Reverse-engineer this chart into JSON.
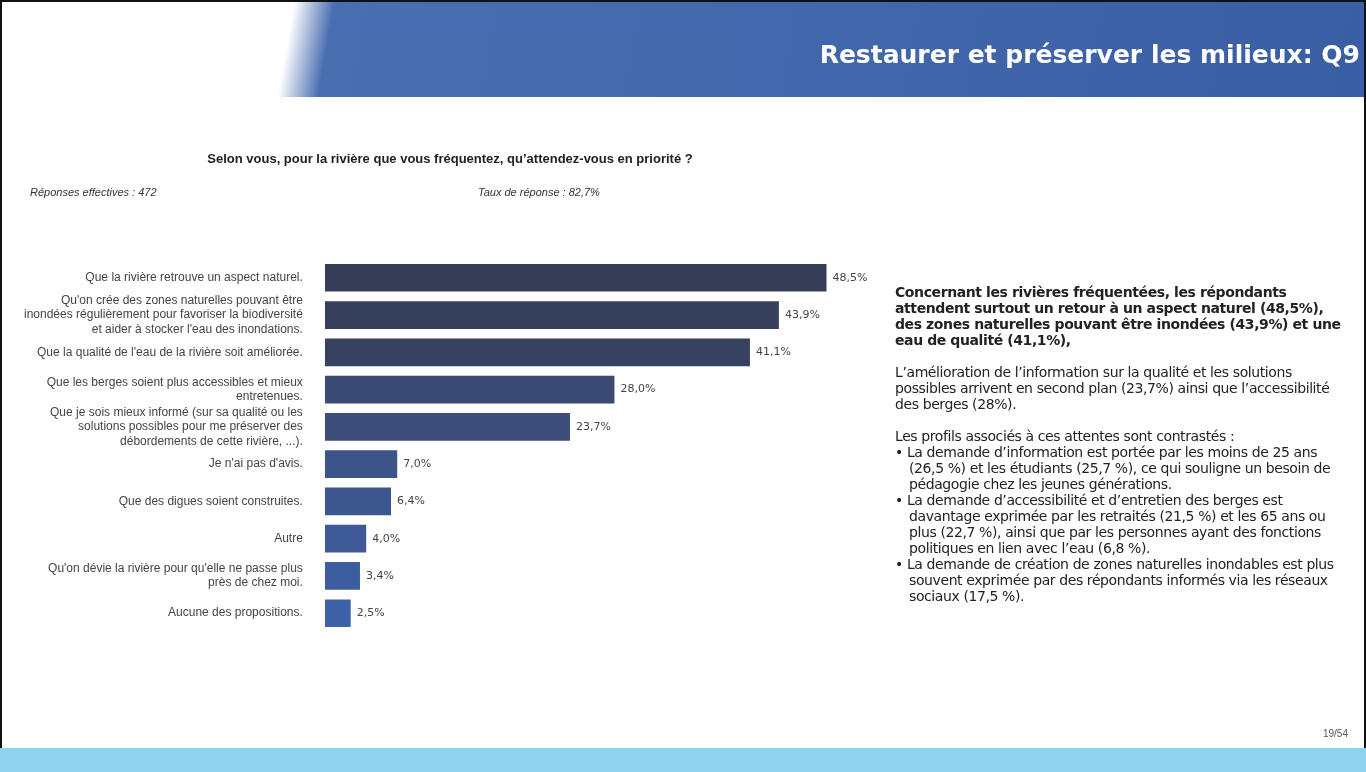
{
  "chart_data": {
    "type": "bar",
    "orientation": "horizontal",
    "title": "Selon vous, pour la rivière que vous fréquentez, qu’attendez-vous en priorité ?",
    "categories": [
      "Que la rivière retrouve un aspect naturel.",
      "Qu'on crée des zones naturelles pouvant être inondées régulièrement pour favoriser la biodiversité et aider à stocker l'eau des inondations.",
      "Que la qualité de l'eau de la rivière soit améliorée.",
      "Que les berges soient plus accessibles et mieux entretenues.",
      "Que je sois mieux informé (sur sa qualité ou les solutions possibles pour me préserver des débordements de cette rivière, ...).",
      "Je n'ai pas d'avis.",
      "Que des digues soient construites.",
      "Autre",
      "Qu'on dévie la rivière pour qu'elle ne passe plus près de chez moi.",
      "Aucune des propositions."
    ],
    "values": [
      48.5,
      43.9,
      41.1,
      28.0,
      23.7,
      7.0,
      6.4,
      4.0,
      3.4,
      2.5
    ],
    "value_labels": [
      "48,5%",
      "43,9%",
      "41,1%",
      "28,0%",
      "23,7%",
      "7,0%",
      "6,4%",
      "4,0%",
      "3,4%",
      "2,5%"
    ],
    "colors": [
      "#363d56",
      "#363f5c",
      "#374260",
      "#3a4a72",
      "#3b4d78",
      "#3d5488",
      "#3d578e",
      "#3d5a96",
      "#3d5e9e",
      "#3e62a8"
    ],
    "legend": false,
    "tick_labels": "y",
    "annotations": [
      "Restaurer et préserver les milieux: Q9",
      "Réponses effectives : 472",
      "Taux de réponse : 82,7%",
      "Concernant les rivières fréquentées, les répondants attendent surtout un retour à un aspect naturel (48,5%), des zones naturelles pouvant être inondées (43,9%) et une eau de qualité (41,1%),",
      "L’amélioration de l’information sur la qualité et les solutions possibles arrivent en second plan (23,7%) ainsi que l’accessibilité des berges (28%).",
      "Les profils associés à ces attentes sont contrastés :",
      "• La demande d’information est portée par les moins de 25 ans (26,5 %) et les étudiants (25,7 %), ce qui souligne un besoin de pédagogie chez les jeunes générations.",
      "• La demande d’accessibilité et d’entretien des berges est davantage exprimée par les retraités (21,5 %) et les 65 ans ou plus (22,7 %), ainsi que par les personnes ayant des fonctions politiques en lien avec l’eau (6,8 %).",
      "• La demande de création de zones naturelles inondables est plus souvent exprimée par des répondants informés via les réseaux sociaux (17,5 %).",
      "19/54"
    ]
  }
}
